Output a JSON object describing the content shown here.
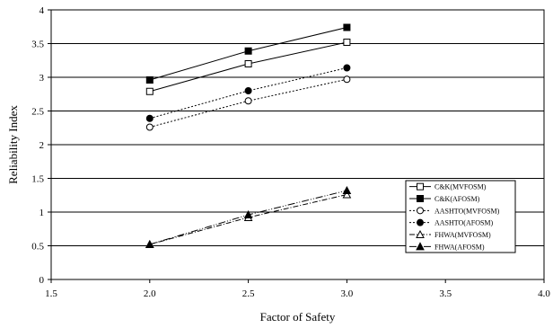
{
  "chart_data": {
    "type": "line",
    "title": "",
    "xlabel": "Factor of Safety",
    "ylabel": "Reliability Index",
    "xlim": [
      1.5,
      4.0
    ],
    "ylim": [
      0,
      4
    ],
    "xticks": [
      "1.5",
      "2.0",
      "2.5",
      "3.0",
      "3.5",
      "4.0"
    ],
    "yticks": [
      "0",
      "0.5",
      "1",
      "1.5",
      "2",
      "2.5",
      "3",
      "3.5",
      "4"
    ],
    "grid": "horizontal",
    "legend_position": "lower-right",
    "x": [
      2.0,
      2.5,
      3.0
    ],
    "series": [
      {
        "name": "C&K(MVFOSM)",
        "values": [
          2.79,
          3.2,
          3.52
        ],
        "marker": "square-open",
        "dash": "solid",
        "color": "#000000"
      },
      {
        "name": "C&K(AFOSM)",
        "values": [
          2.96,
          3.39,
          3.74
        ],
        "marker": "square-filled",
        "dash": "solid",
        "color": "#000000"
      },
      {
        "name": "AASHTO(MVFOSM)",
        "values": [
          2.26,
          2.65,
          2.97
        ],
        "marker": "circle-open",
        "dash": "dotted",
        "color": "#000000"
      },
      {
        "name": "AASHTO(AFOSM)",
        "values": [
          2.39,
          2.8,
          3.14
        ],
        "marker": "circle-filled",
        "dash": "dotted",
        "color": "#000000"
      },
      {
        "name": "FHWA(MVFOSM)",
        "values": [
          0.52,
          0.92,
          1.26
        ],
        "marker": "triangle-open",
        "dash": "dashdot",
        "color": "#000000"
      },
      {
        "name": "FHWA(AFOSM)",
        "values": [
          0.52,
          0.96,
          1.32
        ],
        "marker": "triangle-filled",
        "dash": "dashdot2",
        "color": "#000000"
      }
    ]
  }
}
